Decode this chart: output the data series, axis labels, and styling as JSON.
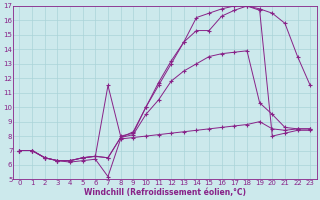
{
  "background_color": "#cce9ec",
  "grid_color": "#aad4d8",
  "line_color": "#882288",
  "xlim": [
    -0.5,
    23.5
  ],
  "ylim": [
    5,
    17
  ],
  "xticks": [
    0,
    1,
    2,
    3,
    4,
    5,
    6,
    7,
    8,
    9,
    10,
    11,
    12,
    13,
    14,
    15,
    16,
    17,
    18,
    19,
    20,
    21,
    22,
    23
  ],
  "yticks": [
    5,
    6,
    7,
    8,
    9,
    10,
    11,
    12,
    13,
    14,
    15,
    16,
    17
  ],
  "xlabel": "Windchill (Refroidissement éolien,°C)",
  "series": [
    [
      7.0,
      7.0,
      6.5,
      6.3,
      6.2,
      6.3,
      6.4,
      5.2,
      7.8,
      7.9,
      8.0,
      8.1,
      8.2,
      8.3,
      8.4,
      8.5,
      8.6,
      8.7,
      8.8,
      9.0,
      8.5,
      8.4,
      8.5,
      8.5
    ],
    [
      7.0,
      7.0,
      6.5,
      6.3,
      6.3,
      6.5,
      6.6,
      6.5,
      7.9,
      8.1,
      9.5,
      10.5,
      11.8,
      12.5,
      13.0,
      13.5,
      13.7,
      13.8,
      13.9,
      10.3,
      9.5,
      8.6,
      8.5,
      8.5
    ],
    [
      7.0,
      7.0,
      6.5,
      6.3,
      6.3,
      6.5,
      6.6,
      6.5,
      7.9,
      8.3,
      10.0,
      11.7,
      13.2,
      14.5,
      15.3,
      15.3,
      16.3,
      16.7,
      17.0,
      16.8,
      16.5,
      15.8,
      13.5,
      11.5
    ],
    [
      7.0,
      7.0,
      6.5,
      6.3,
      6.3,
      6.5,
      6.6,
      11.5,
      8.0,
      8.2,
      10.0,
      11.5,
      13.0,
      14.5,
      16.2,
      16.5,
      16.8,
      17.0,
      17.0,
      16.7,
      8.0,
      8.2,
      8.4,
      8.4
    ]
  ],
  "title_fontsize": 6,
  "tick_fontsize": 5,
  "xlabel_fontsize": 5.5
}
